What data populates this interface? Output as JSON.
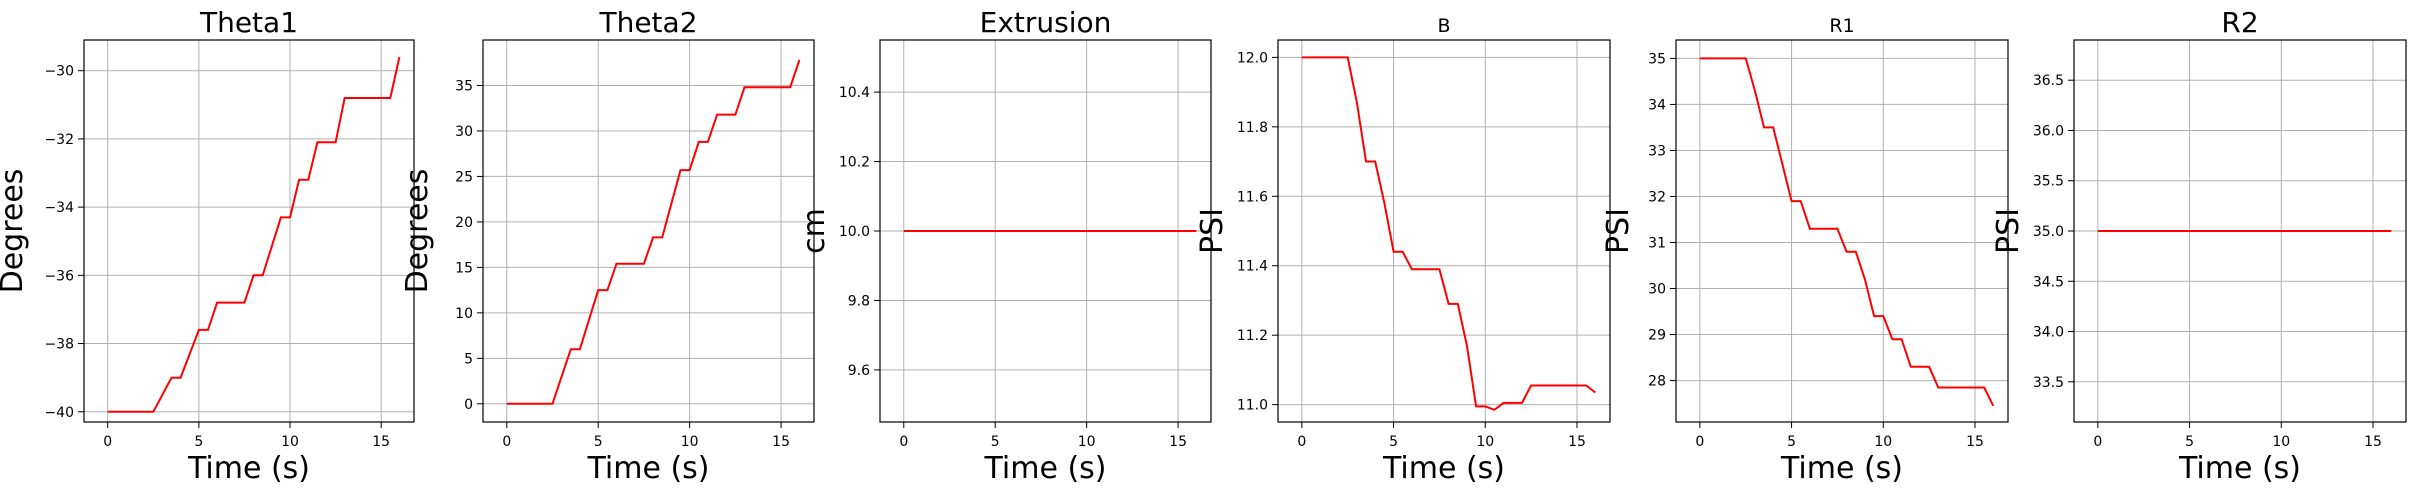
{
  "chart_data": [
    {
      "type": "line",
      "title": "Theta1",
      "xlabel": "Time (s)",
      "ylabel": "Degrees",
      "xlim": [
        -1.3,
        16.8
      ],
      "ylim": [
        -40.3,
        -29.1
      ],
      "xticks": [
        0,
        5,
        10,
        15
      ],
      "yticks": [
        -40,
        -38,
        -36,
        -34,
        -32,
        -30
      ],
      "grid": true,
      "color": "#ff0000",
      "series": [
        {
          "x": [
            0,
            2.5,
            3.5,
            4,
            5,
            5.5,
            6,
            7.5,
            8,
            8.5,
            9.5,
            10,
            10.5,
            11,
            11.5,
            12.5,
            13,
            15.5,
            16
          ],
          "y": [
            -40,
            -40,
            -39,
            -39,
            -37.6,
            -37.6,
            -36.8,
            -36.8,
            -36,
            -36,
            -34.3,
            -34.3,
            -33.2,
            -33.2,
            -32.1,
            -32.1,
            -30.8,
            -30.8,
            -29.6
          ]
        }
      ]
    },
    {
      "type": "line",
      "title": "Theta2",
      "xlabel": "Time (s)",
      "ylabel": "Degrees",
      "xlim": [
        -1.3,
        16.8
      ],
      "ylim": [
        -2.0,
        40.0
      ],
      "xticks": [
        0,
        5,
        10,
        15
      ],
      "yticks": [
        0,
        5,
        10,
        15,
        20,
        25,
        30,
        35
      ],
      "grid": true,
      "color": "#ff0000",
      "series": [
        {
          "x": [
            0,
            2.5,
            3.5,
            4,
            5,
            5.5,
            6,
            7.5,
            8,
            8.5,
            9.5,
            10,
            10.5,
            11,
            11.5,
            12.5,
            13,
            15.5,
            16
          ],
          "y": [
            0,
            0,
            6,
            6,
            12.5,
            12.5,
            15.4,
            15.4,
            18.3,
            18.3,
            25.7,
            25.7,
            28.8,
            28.8,
            31.8,
            31.8,
            34.8,
            34.8,
            37.8
          ]
        }
      ]
    },
    {
      "type": "line",
      "title": "Extrusion",
      "xlabel": "Time (s)",
      "ylabel": "cm",
      "xlim": [
        -1.3,
        16.8
      ],
      "ylim": [
        9.45,
        10.55
      ],
      "xticks": [
        0,
        5,
        10,
        15
      ],
      "yticks": [
        9.6,
        9.8,
        10.0,
        10.2,
        10.4
      ],
      "grid": true,
      "color": "#ff0000",
      "series": [
        {
          "x": [
            0,
            16
          ],
          "y": [
            10,
            10
          ]
        }
      ]
    },
    {
      "type": "line",
      "title": "B",
      "xlabel": "Time (s)",
      "ylabel": "PSI",
      "xlim": [
        -1.3,
        16.8
      ],
      "ylim": [
        10.95,
        12.05
      ],
      "xticks": [
        0,
        5,
        10,
        15
      ],
      "yticks": [
        11.0,
        11.2,
        11.4,
        11.6,
        11.8,
        12.0
      ],
      "grid": true,
      "color": "#ff0000",
      "series": [
        {
          "x": [
            0,
            2.5,
            3,
            3.5,
            4,
            4.5,
            5,
            5.5,
            6,
            7.5,
            8,
            8.5,
            9,
            9.5,
            10,
            10.5,
            11,
            12,
            12.5,
            15.5,
            16
          ],
          "y": [
            12,
            12,
            11.87,
            11.7,
            11.7,
            11.58,
            11.44,
            11.44,
            11.39,
            11.39,
            11.29,
            11.29,
            11.17,
            10.995,
            10.995,
            10.985,
            11.005,
            11.005,
            11.055,
            11.055,
            11.035
          ]
        }
      ]
    },
    {
      "type": "line",
      "title": "R1",
      "xlabel": "Time (s)",
      "ylabel": "PSI",
      "xlim": [
        -1.3,
        16.8
      ],
      "ylim": [
        27.1,
        35.4
      ],
      "xticks": [
        0,
        5,
        10,
        15
      ],
      "yticks": [
        28,
        29,
        30,
        31,
        32,
        33,
        34,
        35
      ],
      "grid": true,
      "color": "#ff0000",
      "series": [
        {
          "x": [
            0,
            2.5,
            3,
            3.5,
            4,
            4.5,
            5,
            5.5,
            6,
            7.5,
            8,
            8.5,
            9,
            9.5,
            10,
            10.5,
            11,
            11.5,
            12.5,
            13,
            15.5,
            16
          ],
          "y": [
            35,
            35,
            34.3,
            33.5,
            33.5,
            32.7,
            31.9,
            31.9,
            31.3,
            31.3,
            30.8,
            30.8,
            30.2,
            29.4,
            29.4,
            28.9,
            28.9,
            28.3,
            28.3,
            27.85,
            27.85,
            27.45
          ]
        }
      ]
    },
    {
      "type": "line",
      "title": "R2",
      "xlabel": "Time (s)",
      "ylabel": "PSI",
      "xlim": [
        -1.3,
        16.8
      ],
      "ylim": [
        33.1,
        36.9
      ],
      "xticks": [
        0,
        5,
        10,
        15
      ],
      "yticks": [
        33.5,
        34.0,
        34.5,
        35.0,
        35.5,
        36.0,
        36.5
      ],
      "grid": true,
      "color": "#ff0000",
      "series": [
        {
          "x": [
            0,
            16
          ],
          "y": [
            35,
            35
          ]
        }
      ]
    }
  ]
}
